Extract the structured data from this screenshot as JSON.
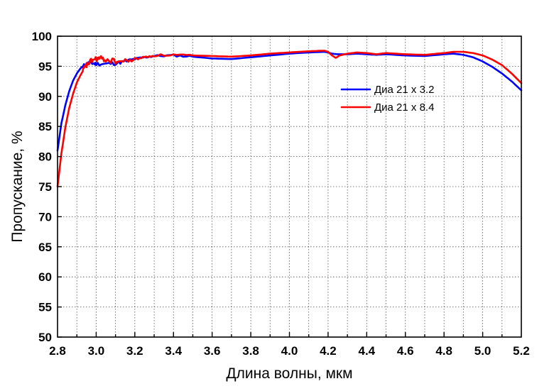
{
  "chart_data": {
    "type": "line",
    "title": "",
    "xlabel": "Длина волны, мкм",
    "ylabel": "Пропускание, %",
    "xlim": [
      2.8,
      5.2
    ],
    "ylim": [
      50,
      100
    ],
    "x_ticks": [
      2.8,
      3.0,
      3.2,
      3.4,
      3.6,
      3.8,
      4.0,
      4.2,
      4.4,
      4.6,
      4.8,
      5.0,
      5.2
    ],
    "x_tick_labels": [
      "2.8",
      "3.0",
      "3.2",
      "3.4",
      "3.6",
      "3.8",
      "4.0",
      "4.2",
      "4.4",
      "4.6",
      "4.8",
      "5.0",
      "5.2"
    ],
    "y_ticks": [
      50,
      55,
      60,
      65,
      70,
      75,
      80,
      85,
      90,
      95,
      100
    ],
    "y_tick_labels": [
      "50",
      "55",
      "60",
      "65",
      "70",
      "75",
      "80",
      "85",
      "90",
      "95",
      "100"
    ],
    "x_minor_step": 0.1,
    "grid": true,
    "legend_position": "right-upper",
    "series": [
      {
        "name": "Диа 21 x 3.2",
        "color": "#0000ff",
        "x": [
          2.8,
          2.82,
          2.84,
          2.86,
          2.88,
          2.9,
          2.92,
          2.94,
          2.96,
          2.98,
          3.0,
          3.05,
          3.1,
          3.15,
          3.2,
          3.25,
          3.3,
          3.4,
          3.5,
          3.6,
          3.7,
          3.8,
          3.9,
          4.0,
          4.1,
          4.18,
          4.2,
          4.22,
          4.25,
          4.3,
          4.35,
          4.4,
          4.45,
          4.5,
          4.6,
          4.7,
          4.8,
          4.85,
          4.9,
          4.95,
          5.0,
          5.05,
          5.1,
          5.15,
          5.2
        ],
        "y": [
          81.0,
          85.5,
          88.5,
          90.8,
          92.6,
          93.8,
          94.7,
          95.2,
          95.5,
          95.5,
          95.4,
          95.4,
          95.5,
          95.8,
          96.2,
          96.5,
          96.7,
          96.8,
          96.6,
          96.3,
          96.2,
          96.5,
          96.8,
          97.1,
          97.3,
          97.4,
          97.3,
          97.1,
          97.0,
          97.0,
          97.1,
          97.0,
          96.9,
          97.0,
          96.8,
          96.7,
          97.0,
          97.1,
          96.9,
          96.5,
          95.8,
          94.9,
          93.8,
          92.5,
          91.0
        ]
      },
      {
        "name": "Диа 21 x 8.4",
        "color": "#ff0000",
        "x": [
          2.8,
          2.82,
          2.84,
          2.86,
          2.88,
          2.9,
          2.92,
          2.94,
          2.96,
          2.98,
          3.0,
          3.02,
          3.05,
          3.1,
          3.15,
          3.2,
          3.25,
          3.3,
          3.4,
          3.5,
          3.6,
          3.7,
          3.8,
          3.9,
          4.0,
          4.1,
          4.18,
          4.2,
          4.22,
          4.24,
          4.26,
          4.3,
          4.35,
          4.4,
          4.45,
          4.5,
          4.6,
          4.7,
          4.8,
          4.85,
          4.9,
          4.95,
          5.0,
          5.05,
          5.1,
          5.15,
          5.2
        ],
        "y": [
          75.0,
          80.5,
          84.8,
          88.0,
          90.4,
          92.3,
          93.6,
          94.7,
          95.5,
          96.0,
          96.2,
          96.3,
          96.1,
          95.8,
          95.8,
          96.2,
          96.5,
          96.8,
          96.9,
          96.8,
          96.7,
          96.6,
          96.8,
          97.1,
          97.3,
          97.5,
          97.6,
          97.4,
          96.8,
          96.4,
          96.8,
          97.1,
          97.3,
          97.2,
          97.0,
          97.2,
          97.0,
          96.9,
          97.2,
          97.4,
          97.4,
          97.2,
          96.8,
          96.1,
          95.2,
          93.8,
          92.2
        ]
      }
    ]
  }
}
